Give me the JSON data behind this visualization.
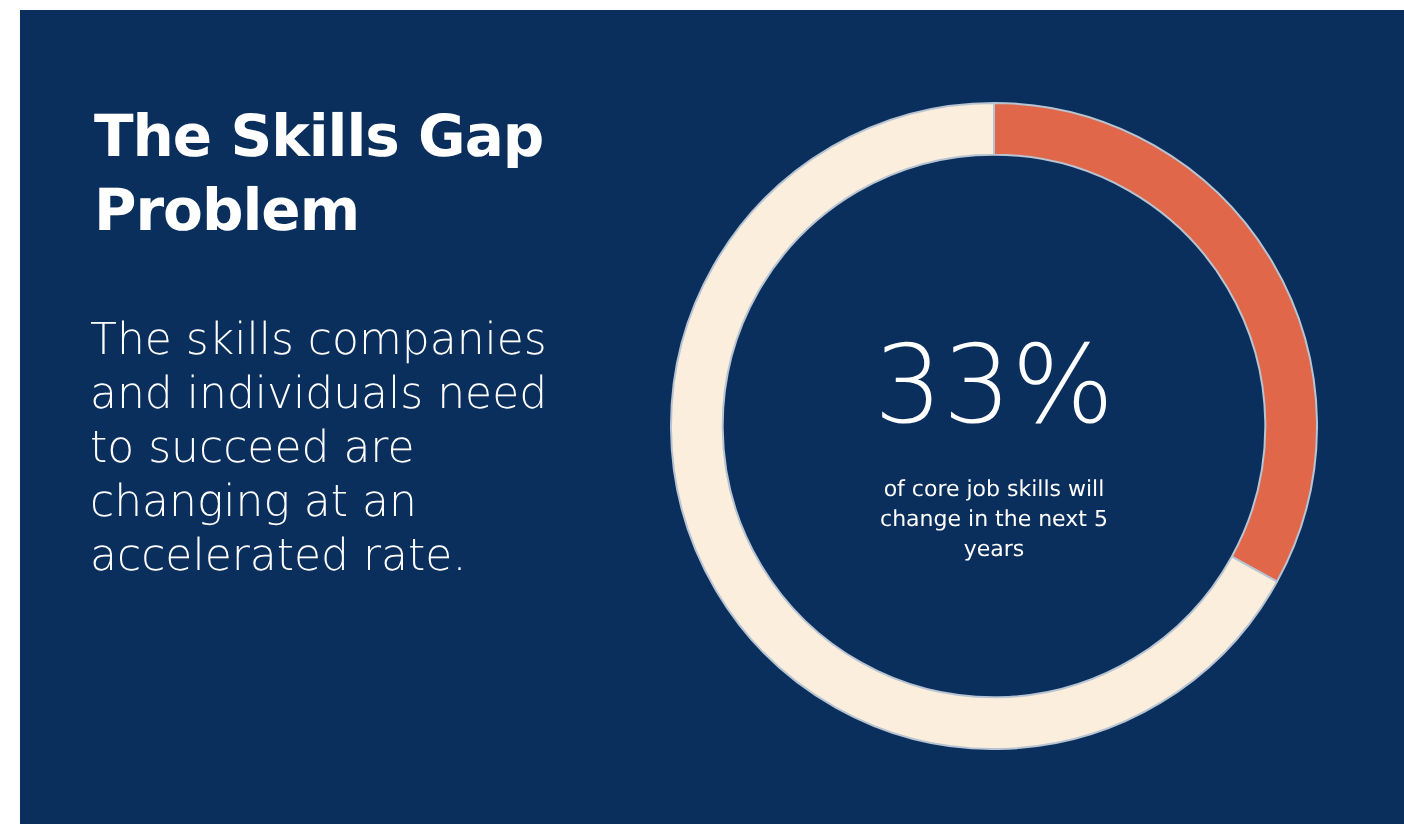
{
  "chart_data": {
    "type": "donut",
    "title": "The Skills Gap Problem",
    "subtitle": "The skills companies and individuals need to succeed are changing at an accelerated rate.",
    "categories": [
      null,
      null
    ],
    "values": [
      33,
      67
    ],
    "colors": [
      "#e0674a",
      "#fbeedd"
    ],
    "value_labels": [
      "33%",
      null
    ],
    "annotations": [
      "of core job skills will change in the next 5 years"
    ],
    "legend": false
  }
}
